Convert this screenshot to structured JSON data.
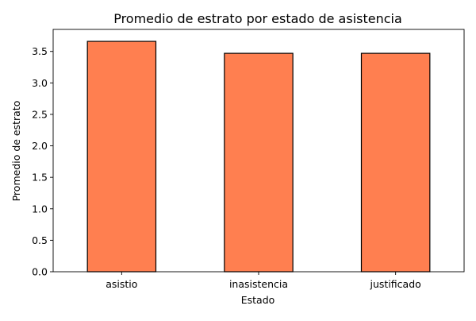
{
  "chart_data": {
    "type": "bar",
    "title": "Promedio de estrato por estado de asistencia",
    "xlabel": "Estado",
    "ylabel": "Promedio de estrato",
    "categories": [
      "asistio",
      "inasistencia",
      "justificado"
    ],
    "values": [
      3.66,
      3.47,
      3.47
    ],
    "ylim": [
      0,
      3.85
    ],
    "yticks": [
      "0.0",
      "0.5",
      "1.0",
      "1.5",
      "2.0",
      "2.5",
      "3.0",
      "3.5"
    ],
    "grid": false,
    "bar_color": "#ff7f50",
    "bar_edge_color": "#000000"
  }
}
